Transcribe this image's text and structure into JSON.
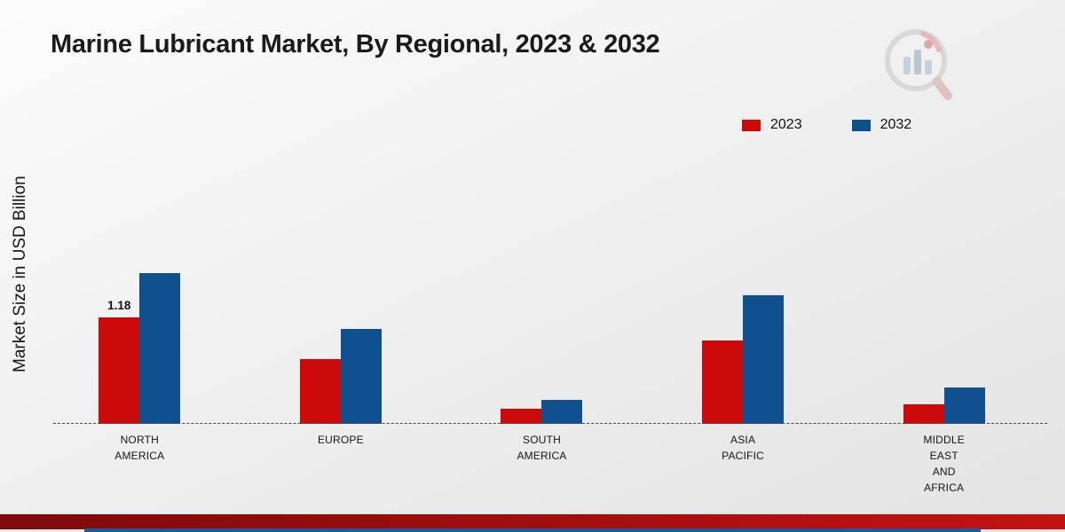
{
  "chart_data": {
    "type": "bar",
    "title": "Marine Lubricant Market, By Regional, 2023 & 2032",
    "xlabel": "",
    "ylabel": "Market Size in USD Billion",
    "categories": [
      "NORTH AMERICA",
      "EUROPE",
      "SOUTH AMERICA",
      "ASIA PACIFIC",
      "MIDDLE EAST AND AFRICA"
    ],
    "category_lines": [
      [
        "NORTH",
        "AMERICA"
      ],
      [
        "EUROPE"
      ],
      [
        "SOUTH",
        "AMERICA"
      ],
      [
        "ASIA",
        "PACIFIC"
      ],
      [
        "MIDDLE",
        "EAST",
        "AND",
        "AFRICA"
      ]
    ],
    "series": [
      {
        "name": "2023",
        "color": "#cc0a0a",
        "values": [
          1.18,
          0.72,
          0.17,
          0.92,
          0.22
        ]
      },
      {
        "name": "2032",
        "color": "#11508f",
        "values": [
          1.67,
          1.05,
          0.27,
          1.43,
          0.4
        ]
      }
    ],
    "annotations": [
      {
        "series_index": 0,
        "category_index": 0,
        "text": "1.18"
      }
    ],
    "ylim": [
      0,
      2
    ],
    "grid": false,
    "baseline_style": "dashed",
    "legend_position": "top-right"
  },
  "footer": {
    "gradient": [
      "#7e0a0a",
      "#c41212"
    ],
    "accent": "#1d5a99"
  },
  "watermark": {
    "name": "chart-magnifier-logo"
  }
}
